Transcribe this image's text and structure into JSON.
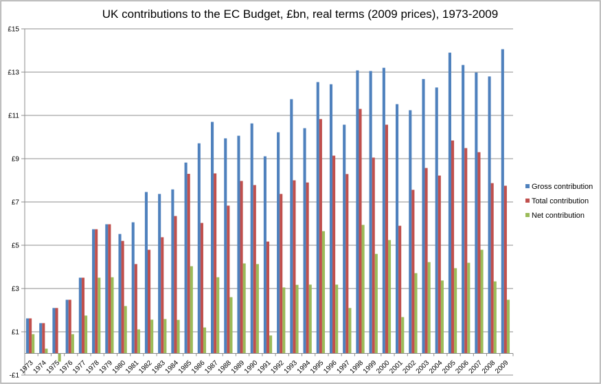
{
  "chart_data": {
    "type": "bar",
    "title": "UK contributions to the EC Budget, £bn, real terms (2009 prices), 1973-2009",
    "xlabel": "",
    "ylabel": "",
    "ylim": [
      -1,
      15
    ],
    "yticks": [
      -1,
      1,
      3,
      5,
      7,
      9,
      11,
      13,
      15
    ],
    "ytick_labels": [
      "-£1",
      "£1",
      "£3",
      "£5",
      "£7",
      "£9",
      "£11",
      "£13",
      "£15"
    ],
    "grid": true,
    "legend_position": "right",
    "categories": [
      "1973",
      "1974",
      "1975",
      "1976",
      "1977",
      "1978",
      "1979",
      "1980",
      "1981",
      "1982",
      "1983",
      "1984",
      "1985",
      "1986",
      "1987",
      "1988",
      "1989",
      "1990",
      "1991",
      "1992",
      "1993",
      "1994",
      "1995",
      "1996",
      "1997",
      "1998",
      "1999",
      "2000",
      "2001",
      "2002",
      "2003",
      "2004",
      "2005",
      "2006",
      "2007",
      "2008",
      "2009"
    ],
    "series": [
      {
        "name": "Gross contribution",
        "color": "#4F81BD",
        "values": [
          1.62,
          1.4,
          2.1,
          2.48,
          3.5,
          5.74,
          5.97,
          5.52,
          6.06,
          7.46,
          7.37,
          7.58,
          8.82,
          9.71,
          10.7,
          9.94,
          10.06,
          10.63,
          9.11,
          10.22,
          11.75,
          10.41,
          12.54,
          12.44,
          10.57,
          13.08,
          13.05,
          13.2,
          11.52,
          11.24,
          12.68,
          12.29,
          13.9,
          13.33,
          12.98,
          12.8,
          14.06
        ]
      },
      {
        "name": "Total contribution",
        "color": "#C0504D",
        "values": [
          1.62,
          1.4,
          2.1,
          2.48,
          3.5,
          5.74,
          5.97,
          5.2,
          4.13,
          4.79,
          5.37,
          6.35,
          8.3,
          6.03,
          8.32,
          6.83,
          7.97,
          7.78,
          5.17,
          7.37,
          8.0,
          7.9,
          10.83,
          9.14,
          8.29,
          11.3,
          9.05,
          10.57,
          5.9,
          7.56,
          8.57,
          8.22,
          9.84,
          9.49,
          9.3,
          7.87,
          7.75
        ]
      },
      {
        "name": "Net contribution",
        "color": "#9BBB59",
        "values": [
          0.89,
          0.22,
          -0.38,
          0.89,
          1.75,
          3.5,
          3.52,
          2.19,
          1.11,
          1.56,
          1.59,
          1.55,
          4.03,
          1.2,
          3.52,
          2.6,
          4.16,
          4.13,
          0.83,
          3.05,
          3.17,
          3.18,
          5.65,
          3.18,
          2.1,
          5.94,
          4.6,
          5.24,
          1.68,
          3.71,
          4.22,
          3.37,
          3.94,
          4.19,
          4.79,
          3.33,
          2.48
        ]
      }
    ]
  }
}
